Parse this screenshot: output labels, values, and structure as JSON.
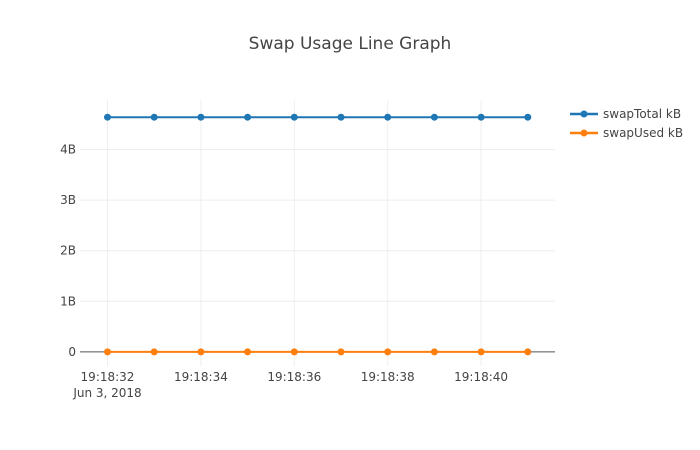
{
  "chart_data": {
    "type": "line",
    "title": "Swap Usage Line Graph",
    "x": [
      "19:18:32",
      "19:18:33",
      "19:18:34",
      "19:18:35",
      "19:18:36",
      "19:18:37",
      "19:18:38",
      "19:18:39",
      "19:18:40",
      "19:18:41"
    ],
    "x_axis_date_label": "Jun 3, 2018",
    "x_tick_labels": [
      "19:18:32",
      "19:18:34",
      "19:18:36",
      "19:18:38",
      "19:18:40"
    ],
    "y_ticks": [
      {
        "value": 0,
        "label": "0"
      },
      {
        "value": 1000000000,
        "label": "1B"
      },
      {
        "value": 2000000000,
        "label": "2B"
      },
      {
        "value": 3000000000,
        "label": "3B"
      },
      {
        "value": 4000000000,
        "label": "4B"
      }
    ],
    "ylim": [
      -280000000,
      4980000000
    ],
    "grid": true,
    "legend_position": "right",
    "series": [
      {
        "name": "swapTotal kB",
        "color": "#1f77b4",
        "values": [
          4640000000,
          4640000000,
          4640000000,
          4640000000,
          4640000000,
          4640000000,
          4640000000,
          4640000000,
          4640000000,
          4640000000
        ]
      },
      {
        "name": "swapUsed kB",
        "color": "#ff7f0e",
        "values": [
          0,
          0,
          0,
          0,
          0,
          0,
          0,
          0,
          0,
          0
        ]
      }
    ],
    "colors": {
      "grid": "#eeeeee",
      "zeroline": "#555555",
      "text": "#444444"
    }
  }
}
